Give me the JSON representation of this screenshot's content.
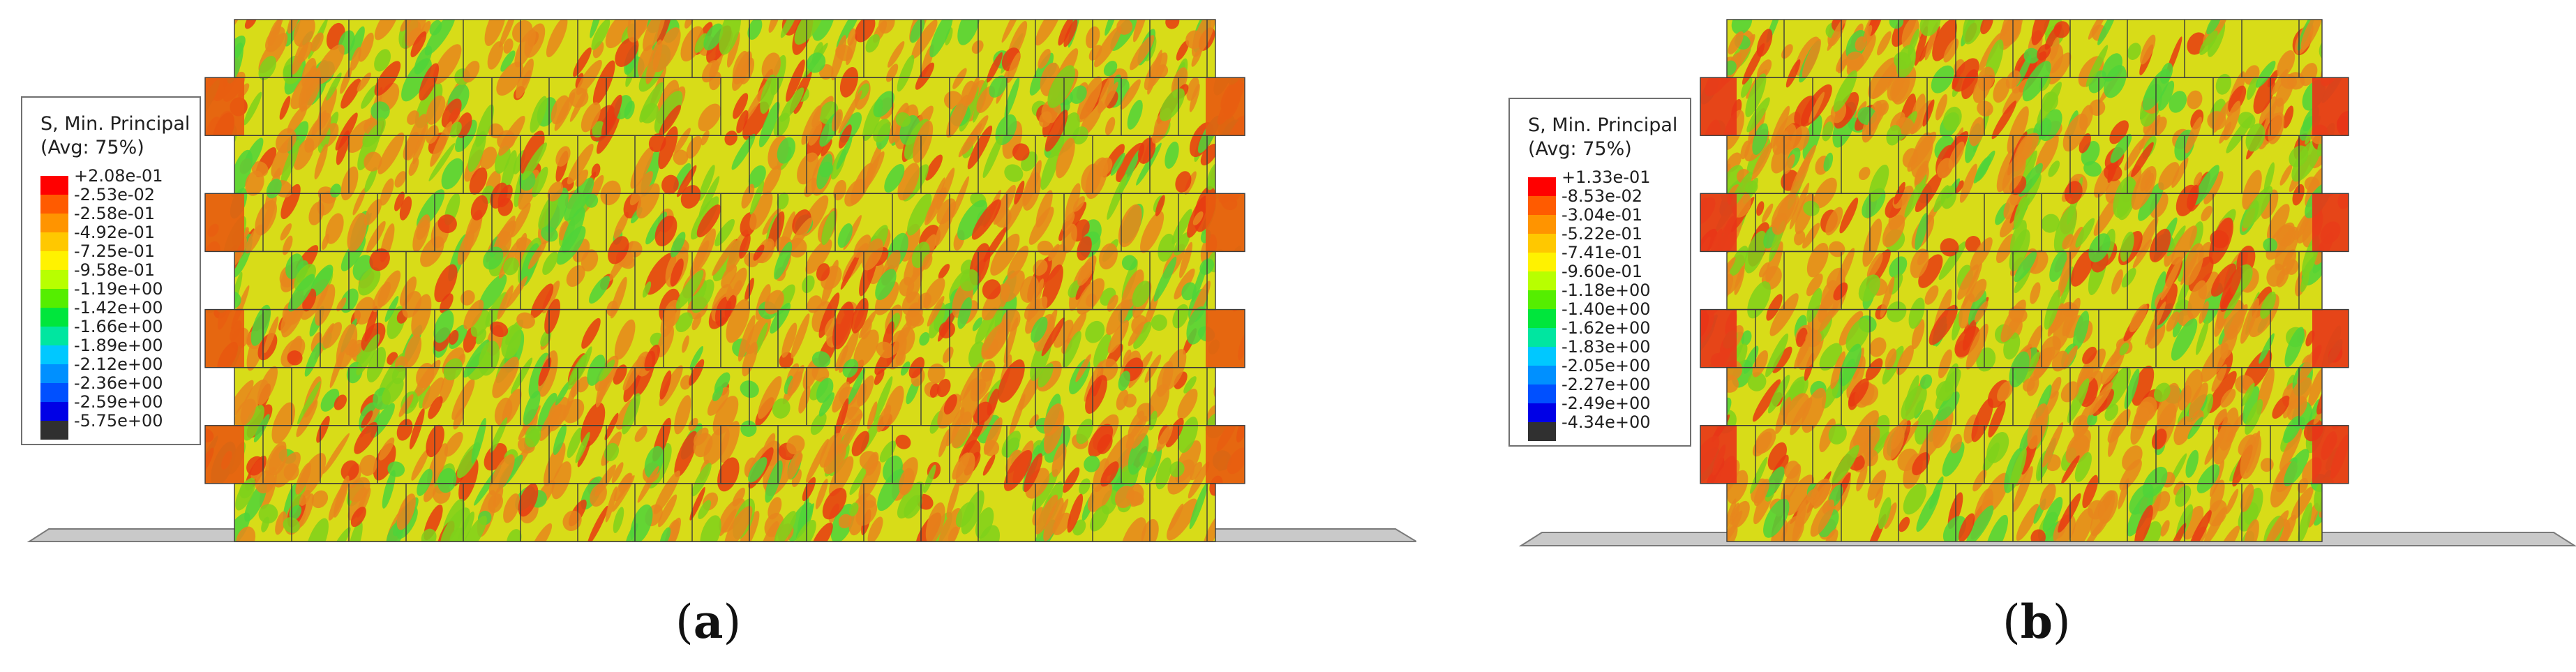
{
  "figure": {
    "panels": [
      {
        "id": "a",
        "caption_open": "(",
        "caption_letter": "a",
        "caption_close": ")",
        "legend": {
          "title": "S, Min. Principal",
          "subtitle": "(Avg: 75%)",
          "entries": [
            {
              "value": "+2.08e-01",
              "color": "#ff0000"
            },
            {
              "value": "-2.53e-02",
              "color": "#ff5b00"
            },
            {
              "value": "-2.58e-01",
              "color": "#ff9400"
            },
            {
              "value": "-4.92e-01",
              "color": "#ffc800"
            },
            {
              "value": "-7.25e-01",
              "color": "#fff200"
            },
            {
              "value": "-9.58e-01",
              "color": "#b8ff00"
            },
            {
              "value": "-1.19e+00",
              "color": "#55ee00"
            },
            {
              "value": "-1.42e+00",
              "color": "#00e63c"
            },
            {
              "value": "-1.66e+00",
              "color": "#00e6a0"
            },
            {
              "value": "-1.89e+00",
              "color": "#00c8ff"
            },
            {
              "value": "-2.12e+00",
              "color": "#0090ff"
            },
            {
              "value": "-2.36e+00",
              "color": "#0050ff"
            },
            {
              "value": "-2.59e+00",
              "color": "#0000e6"
            },
            {
              "value": "-5.75e+00",
              "color": "#303030"
            }
          ]
        }
      },
      {
        "id": "b",
        "caption_open": "(",
        "caption_letter": "b",
        "caption_close": ")",
        "legend": {
          "title": "S, Min. Principal",
          "subtitle": "(Avg: 75%)",
          "entries": [
            {
              "value": "+1.33e-01",
              "color": "#ff0000"
            },
            {
              "value": "-8.53e-02",
              "color": "#ff5b00"
            },
            {
              "value": "-3.04e-01",
              "color": "#ff9400"
            },
            {
              "value": "-5.22e-01",
              "color": "#ffc800"
            },
            {
              "value": "-7.41e-01",
              "color": "#fff200"
            },
            {
              "value": "-9.60e-01",
              "color": "#b8ff00"
            },
            {
              "value": "-1.18e+00",
              "color": "#55ee00"
            },
            {
              "value": "-1.40e+00",
              "color": "#00e63c"
            },
            {
              "value": "-1.62e+00",
              "color": "#00e6a0"
            },
            {
              "value": "-1.83e+00",
              "color": "#00c8ff"
            },
            {
              "value": "-2.05e+00",
              "color": "#0090ff"
            },
            {
              "value": "-2.27e+00",
              "color": "#0050ff"
            },
            {
              "value": "-2.49e+00",
              "color": "#0000e6"
            },
            {
              "value": "-4.34e+00",
              "color": "#303030"
            }
          ]
        }
      }
    ],
    "colors": {
      "mortar": "#3a3a3a",
      "base": "#c9c9c9",
      "base_edge": "#7a7a7a",
      "contour_red": "#e83a12",
      "contour_orange": "#e7861c",
      "contour_yellow": "#d8dc18",
      "contour_green": "#7fd11b",
      "contour_lightgreen": "#4fd43a"
    }
  }
}
